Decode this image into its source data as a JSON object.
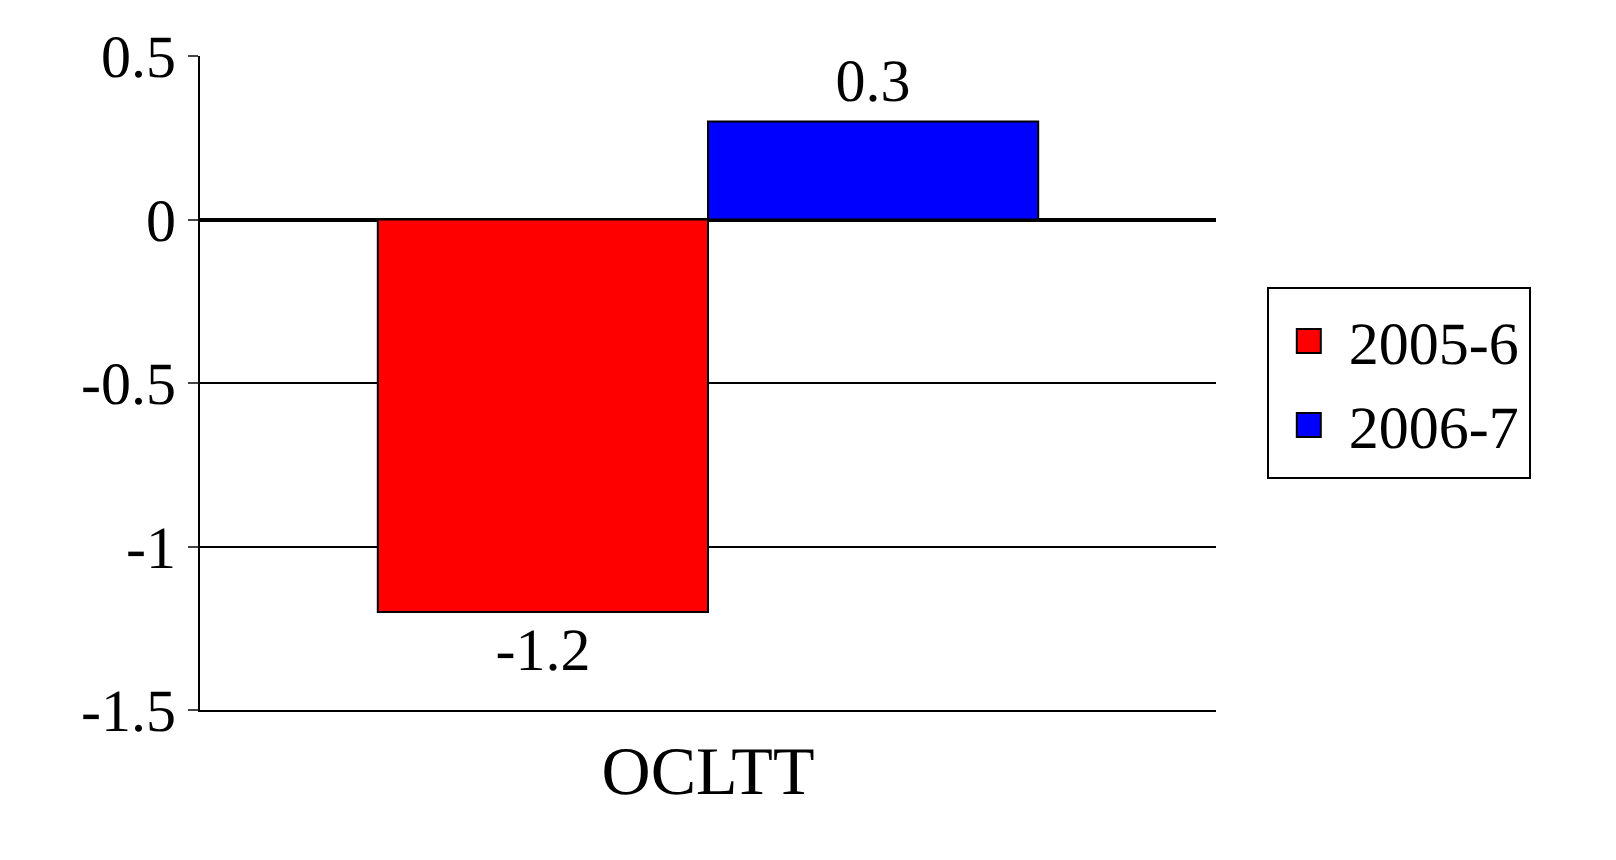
{
  "chart_data": {
    "type": "bar",
    "categories": [
      "OCLTT"
    ],
    "series": [
      {
        "name": "2005-6",
        "color": "#ff0000",
        "values": [
          -1.2
        ]
      },
      {
        "name": "2006-7",
        "color": "#0000ff",
        "values": [
          0.3
        ]
      }
    ],
    "ylim": [
      -1.5,
      0.5
    ],
    "yticks": [
      -1.5,
      -1,
      -0.5,
      0,
      0.5
    ],
    "grid": "y",
    "legend": "right",
    "data_labels": true
  }
}
